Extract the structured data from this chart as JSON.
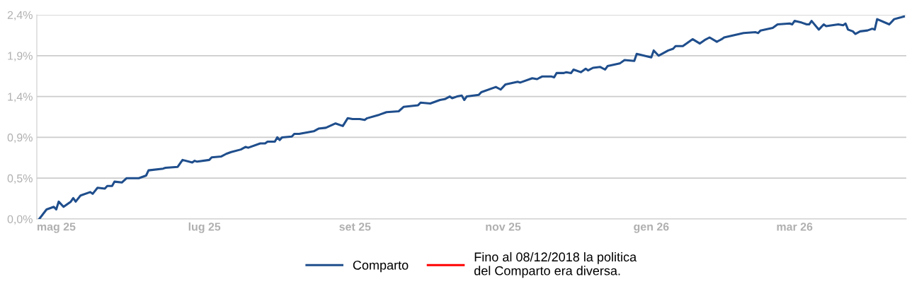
{
  "chart_data": {
    "type": "line",
    "x": [
      "2025-04-24",
      "2025-04-27",
      "2025-04-30",
      "2025-05-01",
      "2025-05-02",
      "2025-05-04",
      "2025-05-07",
      "2025-05-08",
      "2025-05-09",
      "2025-05-11",
      "2025-05-15",
      "2025-05-16",
      "2025-05-18",
      "2025-05-21",
      "2025-05-22",
      "2025-05-24",
      "2025-05-25",
      "2025-05-28",
      "2025-05-30",
      "2025-06-04",
      "2025-06-07",
      "2025-06-08",
      "2025-06-14",
      "2025-06-15",
      "2025-06-20",
      "2025-06-22",
      "2025-06-26",
      "2025-06-27",
      "2025-06-28",
      "2025-07-03",
      "2025-07-04",
      "2025-07-08",
      "2025-07-10",
      "2025-07-12",
      "2025-07-16",
      "2025-07-18",
      "2025-07-19",
      "2025-07-24",
      "2025-07-26",
      "2025-07-27",
      "2025-07-30",
      "2025-07-31",
      "2025-08-01",
      "2025-08-02",
      "2025-08-06",
      "2025-08-07",
      "2025-08-09",
      "2025-08-11",
      "2025-08-15",
      "2025-08-17",
      "2025-08-20",
      "2025-08-24",
      "2025-08-27",
      "2025-08-29",
      "2025-08-31",
      "2025-09-03",
      "2025-09-05",
      "2025-09-06",
      "2025-09-11",
      "2025-09-14",
      "2025-09-19",
      "2025-09-21",
      "2025-09-27",
      "2025-09-28",
      "2025-10-02",
      "2025-10-06",
      "2025-10-08",
      "2025-10-10",
      "2025-10-11",
      "2025-10-13",
      "2025-10-15",
      "2025-10-16",
      "2025-10-17",
      "2025-10-22",
      "2025-10-23",
      "2025-10-29",
      "2025-10-31",
      "2025-11-02",
      "2025-11-07",
      "2025-11-08",
      "2025-11-13",
      "2025-11-15",
      "2025-11-17",
      "2025-11-21",
      "2025-11-22",
      "2025-11-23",
      "2025-11-26",
      "2025-11-27",
      "2025-11-29",
      "2025-11-30",
      "2025-12-03",
      "2025-12-05",
      "2025-12-06",
      "2025-12-08",
      "2025-12-11",
      "2025-12-13",
      "2025-12-14",
      "2025-12-19",
      "2025-12-21",
      "2025-12-25",
      "2025-12-26",
      "2026-01-01",
      "2026-01-02",
      "2026-01-04",
      "2026-01-08",
      "2026-01-10",
      "2026-01-11",
      "2026-01-14",
      "2026-01-18",
      "2026-01-21",
      "2026-01-23",
      "2026-01-25",
      "2026-01-28",
      "2026-01-30",
      "2026-01-31",
      "2026-02-08",
      "2026-02-13",
      "2026-02-14",
      "2026-02-15",
      "2026-02-20",
      "2026-02-22",
      "2026-02-27",
      "2026-02-28",
      "2026-03-01",
      "2026-03-04",
      "2026-03-06",
      "2026-03-07",
      "2026-03-08",
      "2026-03-11",
      "2026-03-13",
      "2026-03-14",
      "2026-03-19",
      "2026-03-21",
      "2026-03-22",
      "2026-03-23",
      "2026-03-25",
      "2026-03-26",
      "2026-03-28",
      "2026-03-31",
      "2026-04-02",
      "2026-04-03",
      "2026-04-04",
      "2026-04-09",
      "2026-04-11",
      "2026-04-15"
    ],
    "series": [
      {
        "name": "Comparto",
        "color": "#1f4e8c",
        "values": [
          0.0,
          0.11,
          0.14,
          0.11,
          0.2,
          0.14,
          0.2,
          0.24,
          0.2,
          0.27,
          0.31,
          0.29,
          0.36,
          0.35,
          0.38,
          0.38,
          0.43,
          0.42,
          0.47,
          0.47,
          0.5,
          0.56,
          0.58,
          0.59,
          0.6,
          0.68,
          0.65,
          0.67,
          0.66,
          0.68,
          0.71,
          0.72,
          0.75,
          0.77,
          0.8,
          0.83,
          0.82,
          0.87,
          0.87,
          0.89,
          0.89,
          0.94,
          0.91,
          0.94,
          0.95,
          0.98,
          0.98,
          0.99,
          1.01,
          1.04,
          1.05,
          1.1,
          1.07,
          1.16,
          1.15,
          1.15,
          1.14,
          1.16,
          1.2,
          1.23,
          1.24,
          1.29,
          1.31,
          1.34,
          1.33,
          1.37,
          1.38,
          1.41,
          1.39,
          1.41,
          1.42,
          1.37,
          1.41,
          1.43,
          1.46,
          1.52,
          1.49,
          1.55,
          1.58,
          1.57,
          1.62,
          1.61,
          1.64,
          1.64,
          1.63,
          1.68,
          1.68,
          1.69,
          1.68,
          1.72,
          1.69,
          1.73,
          1.71,
          1.74,
          1.75,
          1.72,
          1.76,
          1.79,
          1.83,
          1.82,
          1.9,
          1.86,
          1.94,
          1.88,
          1.94,
          1.96,
          1.99,
          1.99,
          2.07,
          2.02,
          2.06,
          2.09,
          2.04,
          2.07,
          2.09,
          2.14,
          2.15,
          2.14,
          2.17,
          2.2,
          2.24,
          2.25,
          2.24,
          2.28,
          2.26,
          2.24,
          2.24,
          2.28,
          2.18,
          2.24,
          2.22,
          2.24,
          2.23,
          2.25,
          2.18,
          2.16,
          2.13,
          2.16,
          2.17,
          2.19,
          2.18,
          2.3,
          2.24,
          2.3,
          2.33
        ]
      },
      {
        "name": "Fino al 08/12/2018 la politica\ndel Comparto era diversa.",
        "color": "#ff0000",
        "values": [
          null,
          null,
          null,
          null,
          null,
          null,
          null,
          null,
          null,
          null,
          null,
          null,
          null,
          null,
          null,
          null,
          null,
          null,
          null,
          null,
          null,
          null,
          null,
          null,
          null,
          null,
          null,
          null,
          null,
          null,
          null,
          null,
          null,
          null,
          null,
          null,
          null,
          null,
          null,
          null,
          null,
          null,
          null,
          null,
          null,
          null,
          null,
          null,
          null,
          null,
          null,
          null,
          null,
          null,
          null,
          null,
          null,
          null,
          null,
          null,
          null,
          null,
          null,
          null,
          null,
          null,
          null,
          null,
          null,
          null,
          null,
          null,
          null,
          null,
          null,
          null,
          null,
          null,
          null,
          null,
          null,
          null,
          null,
          null,
          null,
          null,
          null,
          null,
          null,
          null,
          null,
          null,
          null,
          null,
          null,
          null,
          null,
          null,
          null,
          null,
          null,
          null,
          null,
          null,
          null,
          null,
          null,
          null,
          null,
          null,
          null,
          null,
          null,
          null,
          null,
          null,
          null,
          null,
          null,
          null,
          null,
          null,
          null,
          null,
          null,
          null,
          null,
          null,
          null,
          null,
          null,
          null,
          null,
          null,
          null,
          null,
          null,
          null,
          null,
          null,
          null,
          null,
          null,
          null,
          null
        ]
      }
    ],
    "xlim": [
      "2025-04-23",
      "2026-04-16"
    ],
    "xticks": [
      {
        "value": "2025-05-01",
        "label": "mag 25"
      },
      {
        "value": "2025-07-01",
        "label": "lug 25"
      },
      {
        "value": "2025-09-01",
        "label": "set 25"
      },
      {
        "value": "2025-11-01",
        "label": "nov 25"
      },
      {
        "value": "2026-01-01",
        "label": "gen 26"
      },
      {
        "value": "2026-03-01",
        "label": "mar 26"
      }
    ],
    "ylim": [
      0,
      2.35
    ],
    "yticks": [
      {
        "value": 0,
        "label": "0,0%"
      },
      {
        "value": 0.47,
        "label": "0,5%"
      },
      {
        "value": 0.94,
        "label": "0,9%"
      },
      {
        "value": 1.41,
        "label": "1,4%"
      },
      {
        "value": 1.88,
        "label": "1,9%"
      },
      {
        "value": 2.35,
        "label": "2,4%"
      }
    ],
    "grid": "y",
    "legend": "bottom",
    "marker": "none",
    "line_style": "solid"
  }
}
